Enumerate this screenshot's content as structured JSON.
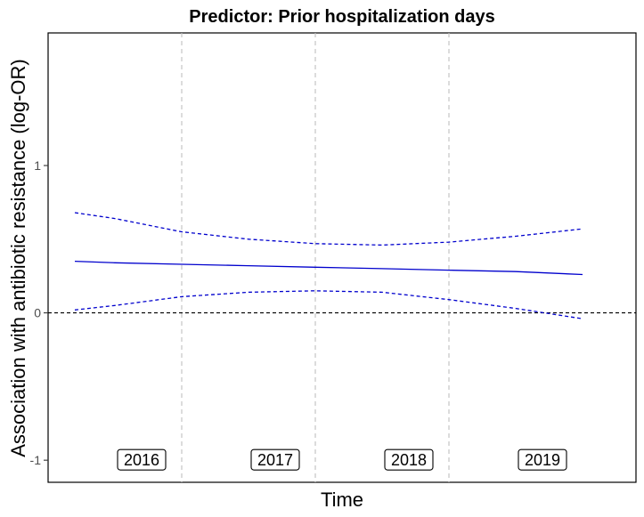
{
  "chart_data": {
    "type": "line",
    "title": "Predictor: Prior hospitalization days",
    "xlabel": "Time",
    "ylabel": "Association with antibiotic resistance (log-OR)",
    "xlim": [
      0.0,
      4.4
    ],
    "ylim": [
      -1.15,
      1.9
    ],
    "yticks": [
      -1,
      0,
      1
    ],
    "ytick_labels": [
      "-1",
      "0",
      "1"
    ],
    "grid": false,
    "period_separators": [
      1.0,
      2.0,
      3.0
    ],
    "period_labels": [
      {
        "x": 0.7,
        "label": "2016"
      },
      {
        "x": 1.7,
        "label": "2017"
      },
      {
        "x": 2.7,
        "label": "2018"
      },
      {
        "x": 3.7,
        "label": "2019"
      }
    ],
    "reference_line": 0,
    "x": [
      0.2,
      0.5,
      1.0,
      1.5,
      2.0,
      2.5,
      3.0,
      3.5,
      4.0
    ],
    "series": [
      {
        "role": "estimate",
        "style": "solid",
        "color": "#0000cd",
        "values": [
          0.35,
          0.34,
          0.33,
          0.32,
          0.31,
          0.3,
          0.29,
          0.28,
          0.26
        ]
      },
      {
        "role": "upper",
        "style": "dashed",
        "color": "#0000cd",
        "values": [
          0.68,
          0.64,
          0.55,
          0.5,
          0.47,
          0.46,
          0.48,
          0.52,
          0.57
        ]
      },
      {
        "role": "lower",
        "style": "dashed",
        "color": "#0000cd",
        "values": [
          0.02,
          0.05,
          0.11,
          0.14,
          0.15,
          0.14,
          0.09,
          0.03,
          -0.04
        ]
      }
    ]
  }
}
